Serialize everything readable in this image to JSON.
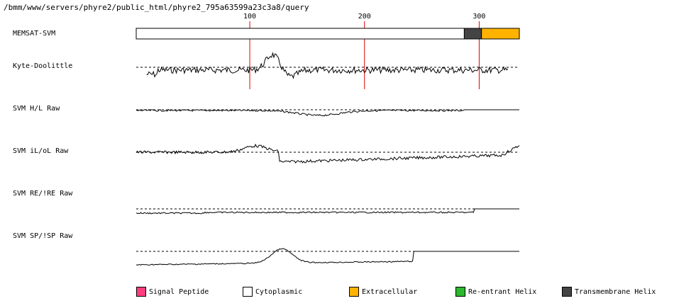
{
  "header": {
    "path": "/bmm/www/servers/phyre2/public_html/phyre2_795a63599a23c3a8/query"
  },
  "ruler": {
    "ticks": [
      {
        "position": 100,
        "label": "100"
      },
      {
        "position": 200,
        "label": "200"
      },
      {
        "position": 300,
        "label": "300"
      }
    ]
  },
  "tracks": [
    {
      "id": "memsat",
      "label": "MEMSAT-SVM"
    },
    {
      "id": "kyte",
      "label": "Kyte-Doolittle"
    },
    {
      "id": "hl",
      "label": "SVM H/L Raw"
    },
    {
      "id": "ilol",
      "label": "SVM iL/oL Raw"
    },
    {
      "id": "reire",
      "label": "SVM RE/!RE Raw"
    },
    {
      "id": "spisp",
      "label": "SVM SP/!SP Raw"
    }
  ],
  "memsat_segments": [
    {
      "type": "Cytoplasmic",
      "start": 1,
      "end": 286
    },
    {
      "type": "Transmembrane Helix",
      "start": 287,
      "end": 301
    },
    {
      "type": "Extracellular",
      "start": 302,
      "end": 335
    }
  ],
  "sequence_length": 335,
  "legend": [
    {
      "label": "Signal Peptide",
      "color": "#ff3d7f"
    },
    {
      "label": "Cytoplasmic",
      "color": "#ffffff"
    },
    {
      "label": "Extracellular",
      "color": "#ffb300"
    },
    {
      "label": "Re-entrant Helix",
      "color": "#2eb82e"
    },
    {
      "label": "Transmembrane Helix",
      "color": "#444444"
    }
  ],
  "colors": {
    "ruler_line": "#dd0000",
    "trace": "#000000"
  }
}
